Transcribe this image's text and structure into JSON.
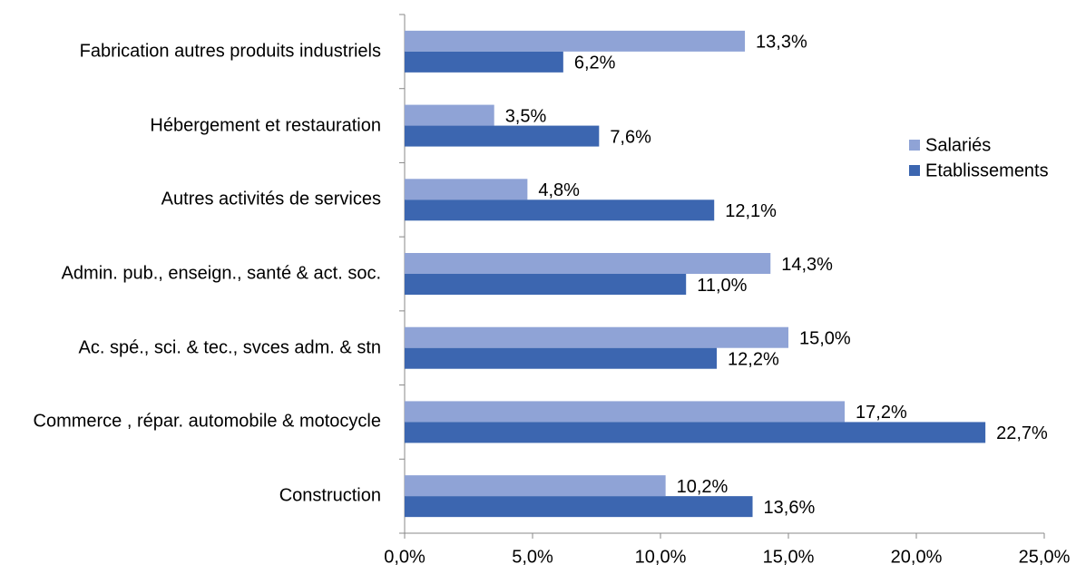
{
  "chart_data": {
    "type": "barh",
    "categories": [
      "Fabrication autres produits industriels",
      "Hébergement et restauration",
      "Autres activités de services",
      "Admin. pub., enseign., santé & act. soc.",
      "Ac. spé., sci. & tec., svces adm. & stn",
      "Commerce , répar. automobile & motocycle",
      "Construction"
    ],
    "series": [
      {
        "name": "Salariés",
        "color": "#8fa3d6",
        "values": [
          13.3,
          3.5,
          4.8,
          14.3,
          15.0,
          17.2,
          10.2
        ],
        "value_labels": [
          "13,3%",
          "3,5%",
          "4,8%",
          "14,3%",
          "15,0%",
          "17,2%",
          "10,2%"
        ]
      },
      {
        "name": "Etablissements",
        "color": "#3c66b0",
        "values": [
          6.2,
          7.6,
          12.1,
          11.0,
          12.2,
          22.7,
          13.6
        ],
        "value_labels": [
          "6,2%",
          "7,6%",
          "12,1%",
          "11,0%",
          "12,2%",
          "22,7%",
          "13,6%"
        ]
      }
    ],
    "xlim": [
      0,
      25
    ],
    "xticks": [
      {
        "value": 0,
        "label": "0,0%"
      },
      {
        "value": 5,
        "label": "5,0%"
      },
      {
        "value": 10,
        "label": "10,0%"
      },
      {
        "value": 15,
        "label": "15,0%"
      },
      {
        "value": 20,
        "label": "20,0%"
      },
      {
        "value": 25,
        "label": "25,0%"
      }
    ],
    "legend": "right",
    "grid": false
  }
}
